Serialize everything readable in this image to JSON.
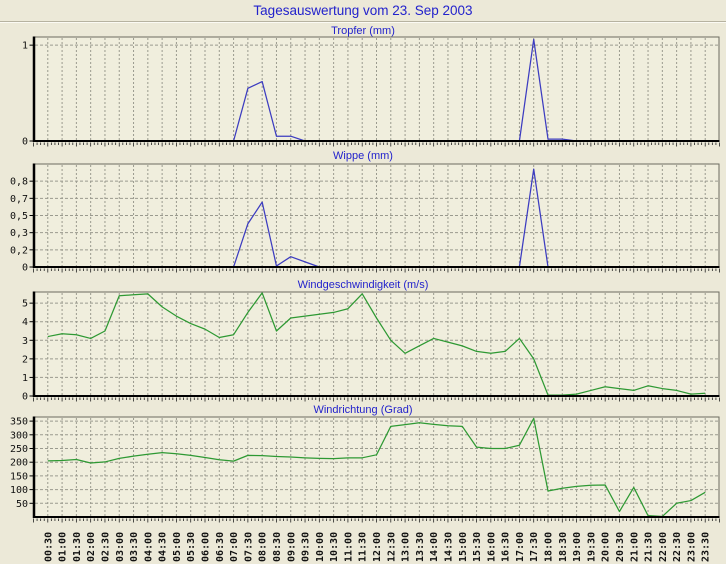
{
  "page": {
    "title": "Tagesauswertung vom 23. Sep 2003"
  },
  "colors": {
    "page_bg": "#ece9d8",
    "plot_bg": "#f0eedd",
    "title_text": "#2222cc",
    "rain_line": "#3c3cc0",
    "wind_line": "#2e9933",
    "grid": "#9a9a8e",
    "axis": "#000000"
  },
  "chart_data": [
    {
      "type": "line",
      "title": "Tropfer (mm)",
      "color": "#3c3cc0",
      "ylim": [
        0,
        1.085
      ],
      "yticks": [
        {
          "v": 1,
          "label": "1"
        },
        {
          "v": 0,
          "label": "0"
        }
      ],
      "gridlines_y": [
        1
      ],
      "categories": [
        "00:30",
        "01:00",
        "01:30",
        "02:00",
        "02:30",
        "03:00",
        "03:30",
        "04:00",
        "04:30",
        "05:00",
        "05:30",
        "06:00",
        "06:30",
        "07:00",
        "07:30",
        "08:00",
        "08:30",
        "09:00",
        "09:30",
        "10:00",
        "10:30",
        "11:00",
        "11:30",
        "12:00",
        "12:30",
        "13:00",
        "13:30",
        "14:00",
        "14:30",
        "15:00",
        "15:30",
        "16:00",
        "16:30",
        "17:00",
        "17:30",
        "18:00",
        "18:30",
        "19:00",
        "19:30",
        "20:00",
        "20:30",
        "21:00",
        "21:30",
        "22:00",
        "22:30",
        "23:00",
        "23:30"
      ],
      "values": [
        0,
        0,
        0,
        0,
        0,
        0,
        0,
        0,
        0,
        0,
        0,
        0,
        0,
        0,
        0.55,
        0.62,
        0.05,
        0.05,
        0,
        0,
        0,
        0,
        0,
        0,
        0,
        0,
        0,
        0,
        0,
        0,
        0,
        0,
        0,
        0,
        1.06,
        0.02,
        0.02,
        0,
        0,
        0,
        0,
        0,
        0,
        0,
        0,
        0,
        0
      ]
    },
    {
      "type": "line",
      "title": "Wippe (mm)",
      "color": "#3c3cc0",
      "ylim": [
        0,
        1.0
      ],
      "yticks": [
        {
          "v": 0.8333,
          "label": "0,8"
        },
        {
          "v": 0.6667,
          "label": "0,7"
        },
        {
          "v": 0.5,
          "label": "0,5"
        },
        {
          "v": 0.3333,
          "label": "0,3"
        },
        {
          "v": 0.1667,
          "label": "0,2"
        },
        {
          "v": 0,
          "label": "0"
        }
      ],
      "gridlines_y": [
        0.1667,
        0.3333,
        0.5,
        0.6667,
        0.8333
      ],
      "categories": [
        "00:30",
        "01:00",
        "01:30",
        "02:00",
        "02:30",
        "03:00",
        "03:30",
        "04:00",
        "04:30",
        "05:00",
        "05:30",
        "06:00",
        "06:30",
        "07:00",
        "07:30",
        "08:00",
        "08:30",
        "09:00",
        "09:30",
        "10:00",
        "10:30",
        "11:00",
        "11:30",
        "12:00",
        "12:30",
        "13:00",
        "13:30",
        "14:00",
        "14:30",
        "15:00",
        "15:30",
        "16:00",
        "16:30",
        "17:00",
        "17:30",
        "18:00",
        "18:30",
        "19:00",
        "19:30",
        "20:00",
        "20:30",
        "21:00",
        "21:30",
        "22:00",
        "22:30",
        "23:00",
        "23:30"
      ],
      "values": [
        0,
        0,
        0,
        0,
        0,
        0,
        0,
        0,
        0,
        0,
        0,
        0,
        0,
        0,
        0.42,
        0.63,
        0.01,
        0.1,
        0.05,
        0,
        0,
        0,
        0,
        0,
        0,
        0,
        0,
        0,
        0,
        0,
        0,
        0,
        0,
        0,
        0.95,
        0,
        0,
        0,
        0,
        0,
        0,
        0,
        0,
        0,
        0,
        0,
        0
      ]
    },
    {
      "type": "line",
      "title": "Windgeschwindigkeit (m/s)",
      "color": "#2e9933",
      "ylim": [
        0,
        5.6
      ],
      "yticks": [
        {
          "v": 5,
          "label": "5"
        },
        {
          "v": 4,
          "label": "4"
        },
        {
          "v": 3,
          "label": "3"
        },
        {
          "v": 2,
          "label": "2"
        },
        {
          "v": 1,
          "label": "1"
        },
        {
          "v": 0,
          "label": "0"
        }
      ],
      "gridlines_y": [
        1,
        2,
        3,
        4,
        5
      ],
      "categories": [
        "00:30",
        "01:00",
        "01:30",
        "02:00",
        "02:30",
        "03:00",
        "03:30",
        "04:00",
        "04:30",
        "05:00",
        "05:30",
        "06:00",
        "06:30",
        "07:00",
        "07:30",
        "08:00",
        "08:30",
        "09:00",
        "09:30",
        "10:00",
        "10:30",
        "11:00",
        "11:30",
        "12:00",
        "12:30",
        "13:00",
        "13:30",
        "14:00",
        "14:30",
        "15:00",
        "15:30",
        "16:00",
        "16:30",
        "17:00",
        "17:30",
        "18:00",
        "18:30",
        "19:00",
        "19:30",
        "20:00",
        "20:30",
        "21:00",
        "21:30",
        "22:00",
        "22:30",
        "23:00",
        "23:30"
      ],
      "values": [
        3.2,
        3.35,
        3.3,
        3.1,
        3.5,
        5.4,
        5.45,
        5.5,
        4.8,
        4.3,
        3.9,
        3.6,
        3.15,
        3.3,
        4.5,
        5.55,
        3.5,
        4.2,
        4.3,
        4.4,
        4.5,
        4.7,
        5.5,
        4.2,
        3.0,
        2.3,
        2.7,
        3.1,
        2.9,
        2.7,
        2.4,
        2.3,
        2.4,
        3.1,
        2.0,
        0.05,
        0.05,
        0.1,
        0.3,
        0.5,
        0.4,
        0.3,
        0.55,
        0.4,
        0.3,
        0.1,
        0.15
      ]
    },
    {
      "type": "line",
      "title": "Windrichtung (Grad)",
      "color": "#2e9933",
      "ylim": [
        0,
        365
      ],
      "yticks": [
        {
          "v": 350,
          "label": "350"
        },
        {
          "v": 300,
          "label": "300"
        },
        {
          "v": 250,
          "label": "250"
        },
        {
          "v": 200,
          "label": "200"
        },
        {
          "v": 150,
          "label": "150"
        },
        {
          "v": 100,
          "label": "100"
        },
        {
          "v": 50,
          "label": "50"
        }
      ],
      "gridlines_y": [
        50,
        100,
        150,
        200,
        250,
        300,
        350
      ],
      "categories": [
        "00:30",
        "01:00",
        "01:30",
        "02:00",
        "02:30",
        "03:00",
        "03:30",
        "04:00",
        "04:30",
        "05:00",
        "05:30",
        "06:00",
        "06:30",
        "07:00",
        "07:30",
        "08:00",
        "08:30",
        "09:00",
        "09:30",
        "10:00",
        "10:30",
        "11:00",
        "11:30",
        "12:00",
        "12:30",
        "13:00",
        "13:30",
        "14:00",
        "14:30",
        "15:00",
        "15:30",
        "16:00",
        "16:30",
        "17:00",
        "17:30",
        "18:00",
        "18:30",
        "19:00",
        "19:30",
        "20:00",
        "20:30",
        "21:00",
        "21:30",
        "22:00",
        "22:30",
        "23:00",
        "23:30"
      ],
      "values": [
        205,
        206,
        210,
        197,
        201,
        214,
        222,
        229,
        235,
        231,
        225,
        217,
        209,
        204,
        225,
        224,
        221,
        219,
        216,
        214,
        213,
        216,
        216,
        227,
        331,
        337,
        344,
        338,
        333,
        331,
        255,
        250,
        250,
        262,
        360,
        95,
        105,
        112,
        116,
        117,
        20,
        108,
        5,
        2,
        50,
        60,
        90
      ]
    }
  ]
}
